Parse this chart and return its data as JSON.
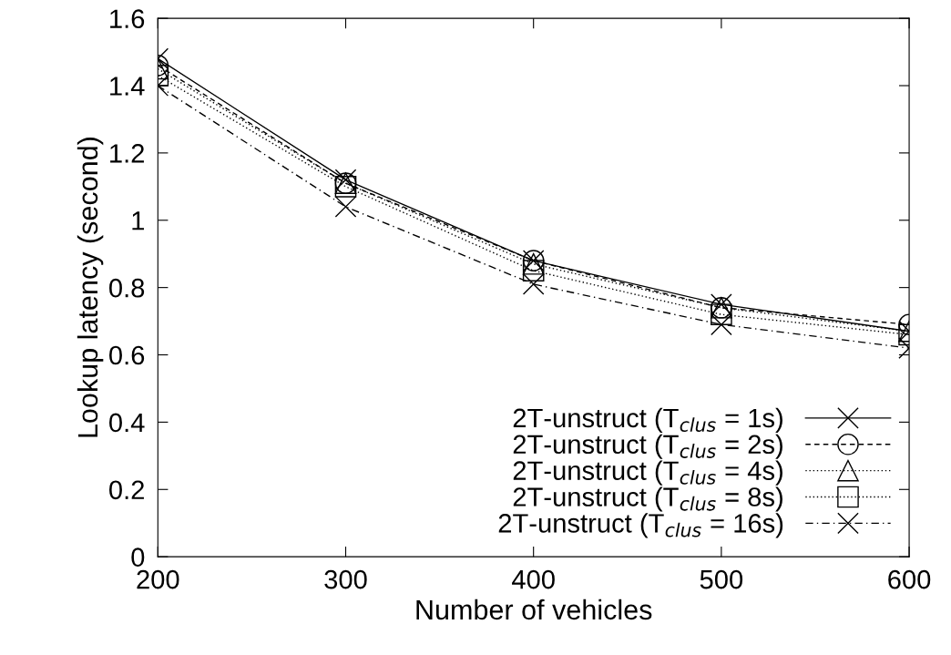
{
  "chart_data": {
    "type": "line",
    "xlabel": "Number of vehicles",
    "ylabel": "Lookup latency (second)",
    "x": [
      200,
      300,
      400,
      500,
      600
    ],
    "xlim": [
      200,
      600
    ],
    "xticks": [
      200,
      300,
      400,
      500,
      600
    ],
    "ylim": [
      0,
      1.6
    ],
    "yticks": [
      0,
      0.2,
      0.4,
      0.6,
      0.8,
      1,
      1.2,
      1.4,
      1.6
    ],
    "grid": false,
    "legend": "bottom right",
    "series": [
      {
        "name": "2T-unstruct (T$_{clus}$ = 1s)",
        "color": "#000000",
        "marker": "cross",
        "line_style": "solid",
        "values": [
          1.48,
          1.12,
          0.88,
          0.75,
          0.67
        ]
      },
      {
        "name": "2T-unstruct (T$_{clus}$ = 2s)",
        "color": "#000000",
        "marker": "circle",
        "line_style": "dashed",
        "values": [
          1.46,
          1.11,
          0.88,
          0.74,
          0.69
        ]
      },
      {
        "name": "2T-unstruct (T$_{clus}$ = 4s)",
        "color": "#000000",
        "marker": "triangle",
        "line_style": "dotted",
        "values": [
          1.45,
          1.11,
          0.87,
          0.74,
          0.67
        ]
      },
      {
        "name": "2T-unstruct (T$_{clus}$ = 8s)",
        "color": "#000000",
        "marker": "square",
        "line_style": "dotted",
        "values": [
          1.43,
          1.1,
          0.85,
          0.72,
          0.66
        ]
      },
      {
        "name": "2T-unstruct (T$_{clus}$ = 16s)",
        "color": "#000000",
        "marker": "cross",
        "line_style": "dashdot",
        "values": [
          1.4,
          1.04,
          0.81,
          0.69,
          0.62
        ]
      }
    ]
  }
}
